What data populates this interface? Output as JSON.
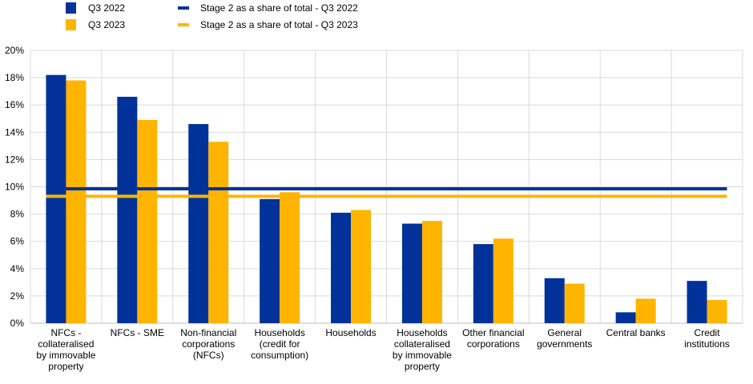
{
  "chart_data": {
    "type": "bar",
    "categories": [
      [
        "NFCs -",
        "collateralised",
        "by immovable",
        "property"
      ],
      [
        "NFCs - SME"
      ],
      [
        "Non-financial",
        "corporations",
        "(NFCs)"
      ],
      [
        "Households",
        "(credit for",
        "consumption)"
      ],
      [
        "Households"
      ],
      [
        "Households",
        "collateralised",
        "by immovable",
        "property"
      ],
      [
        "Other financial",
        "corporations"
      ],
      [
        "General",
        "governments"
      ],
      [
        "Central banks"
      ],
      [
        "Credit",
        "institutions"
      ]
    ],
    "series": [
      {
        "name": "Q3 2022",
        "type": "bar",
        "color": "#003299",
        "values": [
          18.2,
          16.6,
          14.6,
          9.1,
          8.1,
          7.3,
          5.8,
          3.3,
          0.8,
          3.1
        ]
      },
      {
        "name": "Q3 2023",
        "type": "bar",
        "color": "#FFB400",
        "values": [
          17.8,
          14.9,
          13.3,
          9.6,
          8.3,
          7.5,
          6.2,
          2.9,
          1.8,
          1.7
        ]
      },
      {
        "name": "Stage 2 as a share of total - Q3 2022",
        "type": "line",
        "color": "#003299",
        "value": 9.85
      },
      {
        "name": "Stage 2 as a share of total - Q3 2023",
        "type": "line",
        "color": "#FFB400",
        "value": 9.3
      }
    ],
    "ylim": [
      0,
      20
    ],
    "yticks": [
      0,
      2,
      4,
      6,
      8,
      10,
      12,
      14,
      16,
      18,
      20
    ],
    "ytick_labels": [
      "0%",
      "2%",
      "4%",
      "6%",
      "8%",
      "10%",
      "12%",
      "14%",
      "16%",
      "18%",
      "20%"
    ],
    "grid": true,
    "legend_position": "top"
  }
}
